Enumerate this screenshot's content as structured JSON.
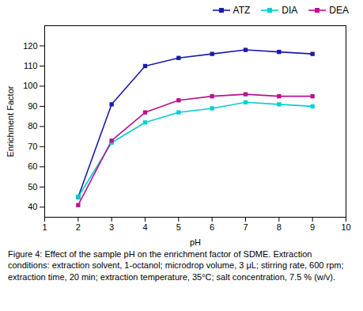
{
  "chart_data": {
    "type": "line",
    "xlabel": "pH",
    "ylabel": "Enrichment Factor",
    "caption": "Figure 4: Effect of the sample pH on the enrichment factor of SDME. Extraction conditions: extraction solvent, 1-octanol; microdrop volume, 3 μL; stirring rate, 600 rpm; extraction time, 20 min; extraction temperature, 35°C; salt concentration, 7.5 % (w/v).",
    "x": [
      2,
      3,
      4,
      5,
      6,
      7,
      8,
      9
    ],
    "series": [
      {
        "name": "ATZ",
        "color": "#1a1aaa",
        "values": [
          45,
          91,
          110,
          114,
          116,
          118,
          117,
          116
        ]
      },
      {
        "name": "DIA",
        "color": "#00d0d0",
        "values": [
          45,
          72,
          82,
          87,
          89,
          92,
          91,
          90
        ]
      },
      {
        "name": "DEA",
        "color": "#bb1090",
        "values": [
          41,
          73,
          87,
          93,
          95,
          96,
          95,
          95
        ]
      }
    ],
    "xlim": [
      1,
      10
    ],
    "xticks": [
      1,
      2,
      3,
      4,
      5,
      6,
      7,
      8,
      9,
      10
    ],
    "ylim": [
      35,
      130
    ],
    "yticks": [
      40,
      50,
      60,
      70,
      80,
      90,
      100,
      110,
      120
    ],
    "marker": "square",
    "legend": "upper right",
    "grid": false
  }
}
